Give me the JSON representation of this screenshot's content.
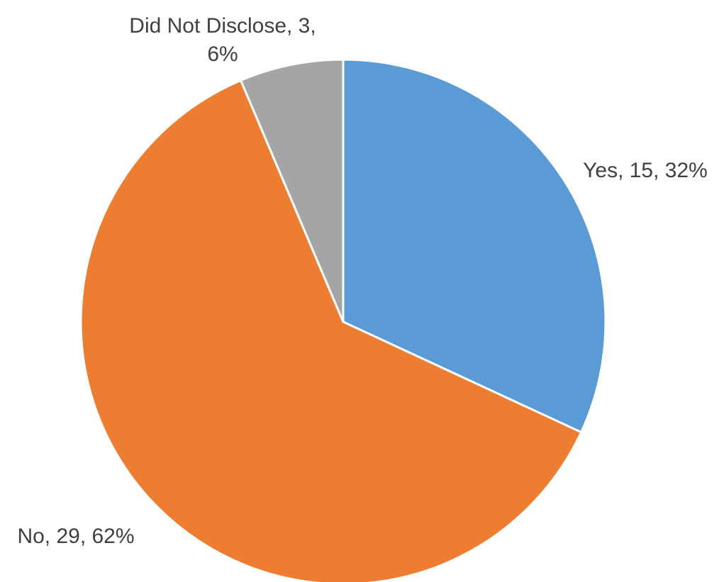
{
  "chart_data": {
    "type": "pie",
    "title": "",
    "start_angle_deg": 0,
    "direction": "clockwise",
    "slices": [
      {
        "category": "Yes",
        "value": 15,
        "percent": 32,
        "color": "#5B9BD5",
        "label_lines": [
          "Yes, 15, 32%"
        ]
      },
      {
        "category": "No",
        "value": 29,
        "percent": 62,
        "color": "#ED7D31",
        "label_lines": [
          "No, 29, 62%"
        ]
      },
      {
        "category": "Did Not Disclose",
        "value": 3,
        "percent": 6,
        "color": "#A5A5A5",
        "label_lines": [
          "Did Not Disclose, 3,",
          "6%"
        ]
      }
    ],
    "legend": "none",
    "data_labels": "outside"
  }
}
